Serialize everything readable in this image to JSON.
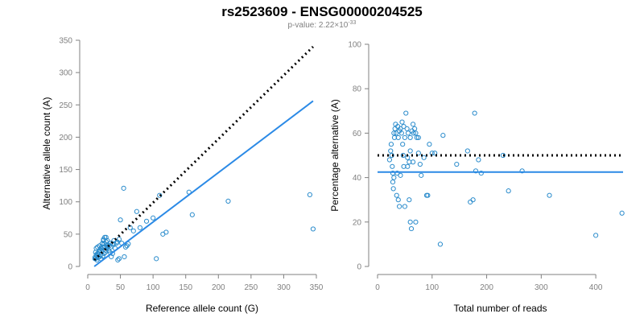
{
  "header": {
    "title": "rs2523609 - ENSG00000204525",
    "pvalue_prefix": "p-value: ",
    "pvalue_mantissa": "2.22×10",
    "pvalue_exponent": "-33"
  },
  "colors": {
    "points": "#2b8ccc",
    "fit_line": "#2b8ae6",
    "reference_line": "#000000",
    "axis": "#808080"
  },
  "chart_data": [
    {
      "type": "scatter",
      "xlabel": "Reference allele count (G)",
      "ylabel": "Alternative allele count (A)",
      "xlim": [
        0,
        350
      ],
      "ylim": [
        0,
        350
      ],
      "xticks": [
        0,
        50,
        100,
        150,
        200,
        250,
        300,
        350
      ],
      "yticks": [
        0,
        50,
        100,
        150,
        200,
        250,
        300,
        350
      ],
      "points": [
        [
          12,
          12
        ],
        [
          13,
          18
        ],
        [
          14,
          10
        ],
        [
          15,
          20
        ],
        [
          16,
          14
        ],
        [
          17,
          22
        ],
        [
          18,
          15
        ],
        [
          19,
          25
        ],
        [
          20,
          18
        ],
        [
          21,
          28
        ],
        [
          22,
          35
        ],
        [
          23,
          30
        ],
        [
          24,
          40
        ],
        [
          25,
          35
        ],
        [
          26,
          45
        ],
        [
          27,
          22
        ],
        [
          28,
          38
        ],
        [
          29,
          28
        ],
        [
          30,
          30
        ],
        [
          32,
          25
        ],
        [
          34,
          22
        ],
        [
          36,
          15
        ],
        [
          38,
          20
        ],
        [
          40,
          35
        ],
        [
          42,
          28
        ],
        [
          44,
          36
        ],
        [
          46,
          10
        ],
        [
          48,
          12
        ],
        [
          50,
          72
        ],
        [
          55,
          121
        ],
        [
          56,
          15
        ],
        [
          58,
          30
        ],
        [
          60,
          32
        ],
        [
          62,
          35
        ],
        [
          65,
          60
        ],
        [
          70,
          55
        ],
        [
          75,
          85
        ],
        [
          80,
          60
        ],
        [
          90,
          70
        ],
        [
          100,
          75
        ],
        [
          105,
          12
        ],
        [
          110,
          110
        ],
        [
          115,
          50
        ],
        [
          120,
          53
        ],
        [
          155,
          115
        ],
        [
          160,
          80
        ],
        [
          215,
          101
        ],
        [
          340,
          111
        ],
        [
          345,
          58
        ],
        [
          11,
          12
        ],
        [
          11,
          14
        ],
        [
          12,
          22
        ],
        [
          13,
          28
        ],
        [
          15,
          30
        ],
        [
          18,
          32
        ],
        [
          20,
          28
        ],
        [
          22,
          35
        ],
        [
          24,
          42
        ],
        [
          26,
          30
        ],
        [
          28,
          45
        ],
        [
          30,
          40
        ],
        [
          33,
          32
        ],
        [
          35,
          30
        ],
        [
          38,
          35
        ],
        [
          45,
          38
        ],
        [
          52,
          36
        ],
        [
          14,
          16
        ],
        [
          16,
          20
        ],
        [
          18,
          24
        ],
        [
          20,
          12
        ],
        [
          23,
          16
        ],
        [
          25,
          20
        ],
        [
          27,
          25
        ],
        [
          29,
          32
        ],
        [
          31,
          33
        ],
        [
          35,
          36
        ],
        [
          40,
          40
        ],
        [
          48,
          42
        ],
        [
          24,
          30
        ]
      ],
      "fit_line": [
        [
          10,
          0
        ],
        [
          345,
          256
        ]
      ],
      "reference_line": [
        [
          10,
          10
        ],
        [
          345,
          340
        ]
      ]
    },
    {
      "type": "scatter",
      "xlabel": "Total number of reads",
      "ylabel": "Percentage alternative (A)",
      "xlim": [
        0,
        450
      ],
      "ylim": [
        0,
        100
      ],
      "xticks": [
        0,
        100,
        200,
        300,
        400
      ],
      "yticks": [
        0,
        20,
        40,
        60,
        80,
        100
      ],
      "points": [
        [
          22,
          48
        ],
        [
          24,
          52
        ],
        [
          25,
          55
        ],
        [
          26,
          50
        ],
        [
          27,
          45
        ],
        [
          28,
          42
        ],
        [
          28,
          38
        ],
        [
          29,
          35
        ],
        [
          30,
          40
        ],
        [
          30,
          60
        ],
        [
          31,
          58
        ],
        [
          32,
          62
        ],
        [
          33,
          64
        ],
        [
          34,
          60
        ],
        [
          35,
          32
        ],
        [
          36,
          42
        ],
        [
          37,
          63
        ],
        [
          38,
          58
        ],
        [
          40,
          61
        ],
        [
          40,
          27
        ],
        [
          42,
          62
        ],
        [
          44,
          60
        ],
        [
          45,
          65
        ],
        [
          46,
          55
        ],
        [
          47,
          50
        ],
        [
          48,
          63
        ],
        [
          50,
          58
        ],
        [
          50,
          27
        ],
        [
          52,
          69
        ],
        [
          54,
          62
        ],
        [
          55,
          45
        ],
        [
          56,
          60
        ],
        [
          58,
          47
        ],
        [
          58,
          30
        ],
        [
          60,
          58
        ],
        [
          60,
          20
        ],
        [
          62,
          17
        ],
        [
          63,
          61
        ],
        [
          65,
          64
        ],
        [
          66,
          60
        ],
        [
          68,
          62
        ],
        [
          70,
          20
        ],
        [
          72,
          58
        ],
        [
          75,
          51
        ],
        [
          78,
          46
        ],
        [
          80,
          41
        ],
        [
          85,
          49
        ],
        [
          90,
          32
        ],
        [
          92,
          32
        ],
        [
          95,
          55
        ],
        [
          100,
          51
        ],
        [
          105,
          51
        ],
        [
          115,
          10
        ],
        [
          120,
          59
        ],
        [
          145,
          46
        ],
        [
          165,
          52
        ],
        [
          170,
          29
        ],
        [
          175,
          30
        ],
        [
          178,
          69
        ],
        [
          180,
          43
        ],
        [
          185,
          48
        ],
        [
          190,
          42
        ],
        [
          230,
          50
        ],
        [
          240,
          34
        ],
        [
          265,
          43
        ],
        [
          315,
          32
        ],
        [
          400,
          14
        ],
        [
          448,
          24
        ],
        [
          38,
          30
        ],
        [
          42,
          41
        ],
        [
          48,
          45
        ],
        [
          55,
          49
        ],
        [
          60,
          52
        ],
        [
          65,
          47
        ],
        [
          70,
          60
        ],
        [
          75,
          58
        ]
      ],
      "fit_line": [
        [
          0,
          42.5
        ],
        [
          450,
          42.5
        ]
      ],
      "reference_line": [
        [
          0,
          50
        ],
        [
          450,
          50
        ]
      ]
    }
  ]
}
